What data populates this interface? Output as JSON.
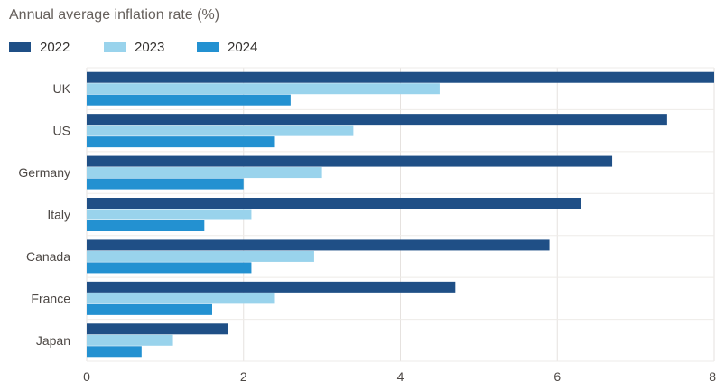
{
  "chart_data": {
    "type": "bar",
    "orientation": "horizontal",
    "title": "Annual average inflation rate (%)",
    "xlabel": "",
    "ylabel": "",
    "categories": [
      "UK",
      "US",
      "Germany",
      "Italy",
      "Canada",
      "France",
      "Japan"
    ],
    "series": [
      {
        "name": "2022",
        "color": "#1f4f86",
        "values": [
          8.0,
          7.4,
          6.7,
          6.3,
          5.9,
          4.7,
          1.8
        ]
      },
      {
        "name": "2023",
        "color": "#99d3ec",
        "values": [
          4.5,
          3.4,
          3.0,
          2.1,
          2.9,
          2.4,
          1.1
        ]
      },
      {
        "name": "2024",
        "color": "#2391d1",
        "values": [
          2.6,
          2.4,
          2.0,
          1.5,
          2.1,
          1.6,
          0.7
        ]
      }
    ],
    "xlim": [
      0,
      8
    ],
    "xticks": [
      0,
      2,
      4,
      6,
      8
    ],
    "grid": true,
    "legend_position": "top-left"
  }
}
